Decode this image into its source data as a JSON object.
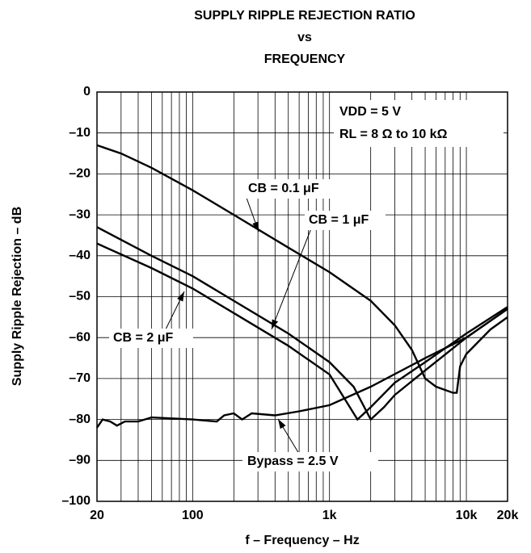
{
  "chart_data": {
    "type": "line",
    "title": [
      "SUPPLY RIPPLE REJECTION RATIO",
      "vs",
      "FREQUENCY"
    ],
    "x_label": "f – Frequency – Hz",
    "y_label": "Supply Ripple Rejection – dB",
    "annotations": [
      "VDD = 5 V",
      "RL = 8 Ω to 10 kΩ"
    ],
    "log_x": true,
    "grid": true,
    "xlim": [
      20,
      20000
    ],
    "ylim": [
      -100,
      0
    ],
    "xticks": [
      20,
      100,
      {
        "value": 1000,
        "label": "1k"
      },
      {
        "value": 10000,
        "label": "10k"
      },
      {
        "value": 20000,
        "label": "20k"
      }
    ],
    "xminor_ticks": [
      30,
      40,
      50,
      60,
      70,
      80,
      90,
      200,
      300,
      400,
      500,
      600,
      700,
      800,
      900,
      2000,
      3000,
      4000,
      5000,
      6000,
      7000,
      8000,
      9000
    ],
    "yticks": [
      0,
      {
        "value": -10,
        "label": "–10"
      },
      {
        "value": -20,
        "label": "–20"
      },
      {
        "value": -30,
        "label": "–30"
      },
      {
        "value": -40,
        "label": "–40"
      },
      {
        "value": -50,
        "label": "–50"
      },
      {
        "value": -60,
        "label": "–60"
      },
      {
        "value": -70,
        "label": "–70"
      },
      {
        "value": -80,
        "label": "–80"
      },
      {
        "value": -90,
        "label": "–90"
      },
      {
        "value": -100,
        "label": "–100"
      }
    ],
    "series": [
      {
        "name": "CB = 0.1 μF",
        "color": "#000000",
        "x": [
          20,
          30,
          50,
          100,
          200,
          500,
          1000,
          2000,
          3000,
          4000,
          5000,
          6000,
          8000,
          8500,
          9000,
          10000,
          15000,
          20000
        ],
        "values": [
          -13,
          -15,
          -18.5,
          -24,
          -30,
          -38,
          -44,
          -51,
          -57,
          -63,
          -70,
          -72,
          -73.5,
          -73.5,
          -67,
          -64,
          -58,
          -55
        ]
      },
      {
        "name": "CB = 1 μF",
        "color": "#000000",
        "x": [
          20,
          50,
          100,
          200,
          500,
          1000,
          1500,
          2000,
          2500,
          3000,
          5000,
          10000,
          20000
        ],
        "values": [
          -33,
          -40,
          -45,
          -51,
          -59,
          -66,
          -72,
          -80,
          -77,
          -74,
          -68,
          -60,
          -53
        ]
      },
      {
        "name": "CB = 2 μF",
        "color": "#000000",
        "x": [
          20,
          50,
          100,
          200,
          500,
          1000,
          1600,
          2000,
          3000,
          5000,
          10000,
          20000
        ],
        "values": [
          -37,
          -43,
          -48,
          -54,
          -62,
          -69,
          -80,
          -77,
          -71,
          -66,
          -59,
          -52.5
        ]
      },
      {
        "name": "Bypass = 2.5 V",
        "color": "#000000",
        "x": [
          20,
          22,
          25,
          28,
          32,
          40,
          50,
          100,
          150,
          170,
          200,
          230,
          270,
          400,
          600,
          1000,
          2000,
          5000,
          10000,
          20000
        ],
        "values": [
          -82,
          -80,
          -80.5,
          -81.5,
          -80.5,
          -80.5,
          -79.5,
          -80,
          -80.5,
          -79,
          -78.5,
          -80,
          -78.5,
          -79,
          -78,
          -76.5,
          -72,
          -65,
          -60,
          -53
        ]
      }
    ]
  }
}
